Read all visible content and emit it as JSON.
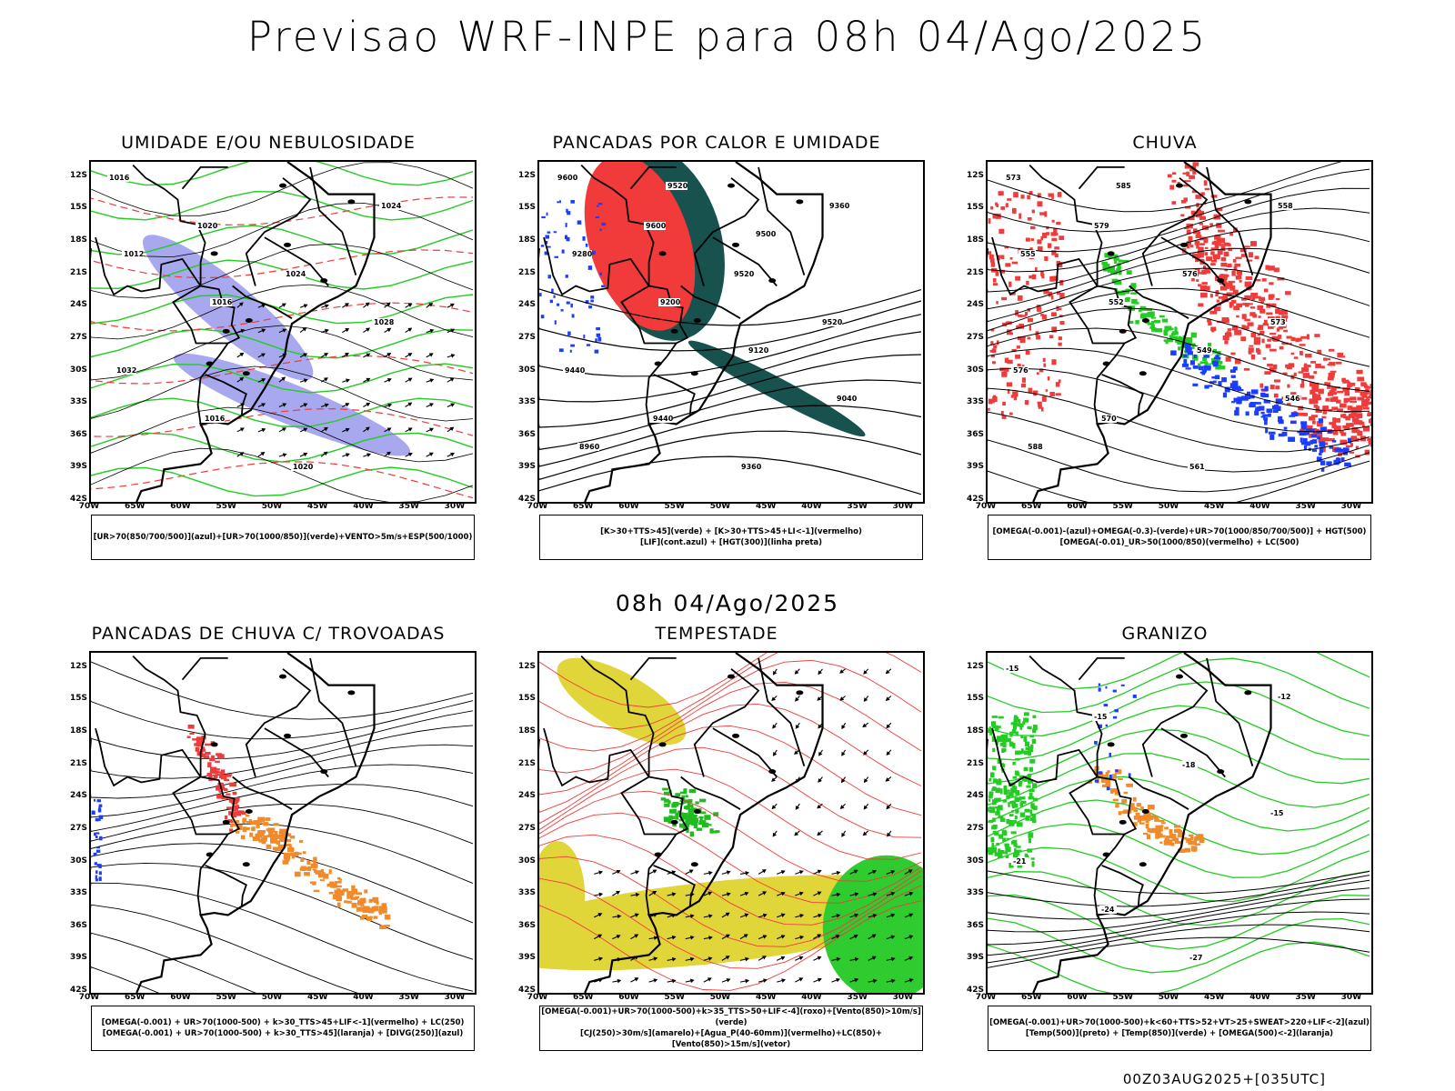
{
  "header": {
    "title": "Previsao WRF-INPE  para 08h 04/Ago/2025"
  },
  "mid_title": "08h 04/Ago/2025",
  "footer": "00Z03AUG2025+[035UTC]",
  "axes": {
    "lat_labels": [
      "12S",
      "15S",
      "18S",
      "21S",
      "24S",
      "27S",
      "30S",
      "33S",
      "36S",
      "39S",
      "42S"
    ],
    "lon_labels": [
      "70W",
      "65W",
      "60W",
      "55W",
      "50W",
      "45W",
      "40W",
      "35W",
      "30W"
    ]
  },
  "colors": {
    "red": "#f13b3b",
    "green": "#22cc22",
    "blue": "#1a3dff",
    "lavender": "#a8a8ee",
    "darkteal": "#17524e",
    "yellow": "#e0d63a",
    "orange": "#f08a2a",
    "black": "#000000"
  },
  "panels": [
    {
      "id": "umidade",
      "title": "UMIDADE E/OU NEBULOSIDADE",
      "legend": [
        "[UR>70(850/700/500)](azul)+[UR>70(1000/850)](verde)+VENTO>5m/s+ESP(500/1000)"
      ],
      "contour_labels": [
        "1016",
        "1020",
        "1024",
        "1028",
        "1032",
        "1016",
        "1020",
        "1024",
        "1012",
        "1016"
      ]
    },
    {
      "id": "pancadas",
      "title": "PANCADAS POR CALOR E UMIDADE",
      "legend": [
        "[K>30+TTS>45](verde) + [K>30+TTS>45+LI<-1](vermelho)",
        "[LIF](cont.azul) + [HGT(300)](linha preta)"
      ],
      "contour_labels": [
        "9600",
        "9600",
        "9520",
        "9520",
        "9440",
        "9440",
        "9360",
        "9360",
        "9280",
        "9200",
        "9120",
        "9040",
        "8960",
        "9520",
        "9500"
      ]
    },
    {
      "id": "chuva",
      "title": "CHUVA",
      "legend": [
        "[OMEGA(-0.001)-(azul)+OMEGA(-0.3)-(verde)+UR>70(1000/850/700/500)] + HGT(500)",
        "[OMEGA(-0.01)_UR>50(1000/850)(vermelho) + LC(500)"
      ],
      "contour_labels": [
        "573",
        "579",
        "576",
        "573",
        "576",
        "570",
        "561",
        "558",
        "555",
        "552",
        "549",
        "546",
        "588",
        "585"
      ]
    },
    {
      "id": "trovoadas",
      "title": "PANCADAS DE CHUVA C/ TROVOADAS",
      "legend": [
        "[OMEGA(-0.001) + UR>70(1000-500) + k>30_TTS>45+LIF<-1](vermelho) + LC(250)",
        "[OMEGA(-0.001) + UR>70(1000-500) + k>30_TTS>45](laranja) + [DIVG(250)](azul)"
      ],
      "contour_labels": []
    },
    {
      "id": "tempestade",
      "title": "TEMPESTADE",
      "legend": [
        "[OMEGA(-0.001)+UR>70(1000-500)+k>35_TTS>50+LIF<-4](roxo)+[Vento(850)>10m/s](verde)",
        "[CJ(250)>30m/s](amarelo)+[Agua_P(40-60mm)](vermelho)+LC(850)+[Vento(850)>15m/s](vetor)"
      ],
      "contour_labels": []
    },
    {
      "id": "granizo",
      "title": "GRANIZO",
      "legend": [
        "[OMEGA(-0.001)+UR>70(1000-500)+k<60+TTS>52+VT>25+SWEAT>220+LIF<-2](azul)",
        "[Temp(500)](preto) + [Temp(850)](verde) + [OMEGA(500)<-2](laranja)"
      ],
      "contour_labels": [
        "-15",
        "-15",
        "-18",
        "-15",
        "-21",
        "-24",
        "-27",
        "-12"
      ]
    }
  ]
}
